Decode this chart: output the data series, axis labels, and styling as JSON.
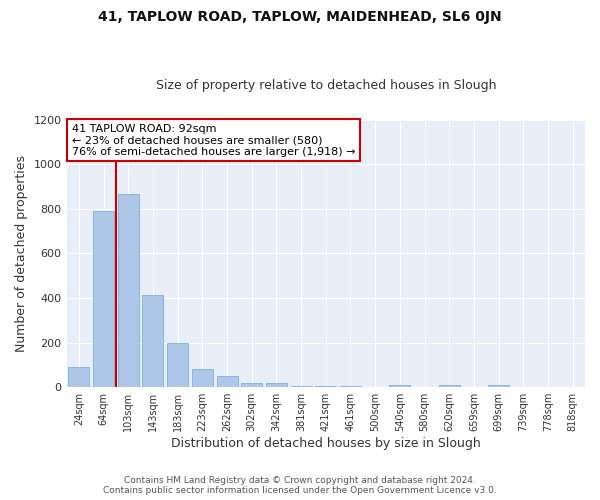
{
  "title": "41, TAPLOW ROAD, TAPLOW, MAIDENHEAD, SL6 0JN",
  "subtitle": "Size of property relative to detached houses in Slough",
  "xlabel": "Distribution of detached houses by size in Slough",
  "ylabel": "Number of detached properties",
  "bar_labels": [
    "24sqm",
    "64sqm",
    "103sqm",
    "143sqm",
    "183sqm",
    "223sqm",
    "262sqm",
    "302sqm",
    "342sqm",
    "381sqm",
    "421sqm",
    "461sqm",
    "500sqm",
    "540sqm",
    "580sqm",
    "620sqm",
    "659sqm",
    "699sqm",
    "739sqm",
    "778sqm",
    "818sqm"
  ],
  "bar_values": [
    90,
    790,
    865,
    415,
    200,
    80,
    50,
    20,
    20,
    5,
    5,
    5,
    0,
    10,
    0,
    10,
    0,
    10,
    0,
    0,
    0
  ],
  "bar_color": "#aec6e8",
  "bar_edge_color": "#6aaad4",
  "bg_color": "#e8eef8",
  "grid_color": "#ffffff",
  "vline_color": "#cc0000",
  "vline_x_index": 2,
  "annotation_text": "41 TAPLOW ROAD: 92sqm\n← 23% of detached houses are smaller (580)\n76% of semi-detached houses are larger (1,918) →",
  "annotation_box_color": "#ffffff",
  "annotation_box_edge": "#cc0000",
  "ylim": [
    0,
    1200
  ],
  "yticks": [
    0,
    200,
    400,
    600,
    800,
    1000,
    1200
  ],
  "footer_line1": "Contains HM Land Registry data © Crown copyright and database right 2024.",
  "footer_line2": "Contains public sector information licensed under the Open Government Licence v3.0."
}
